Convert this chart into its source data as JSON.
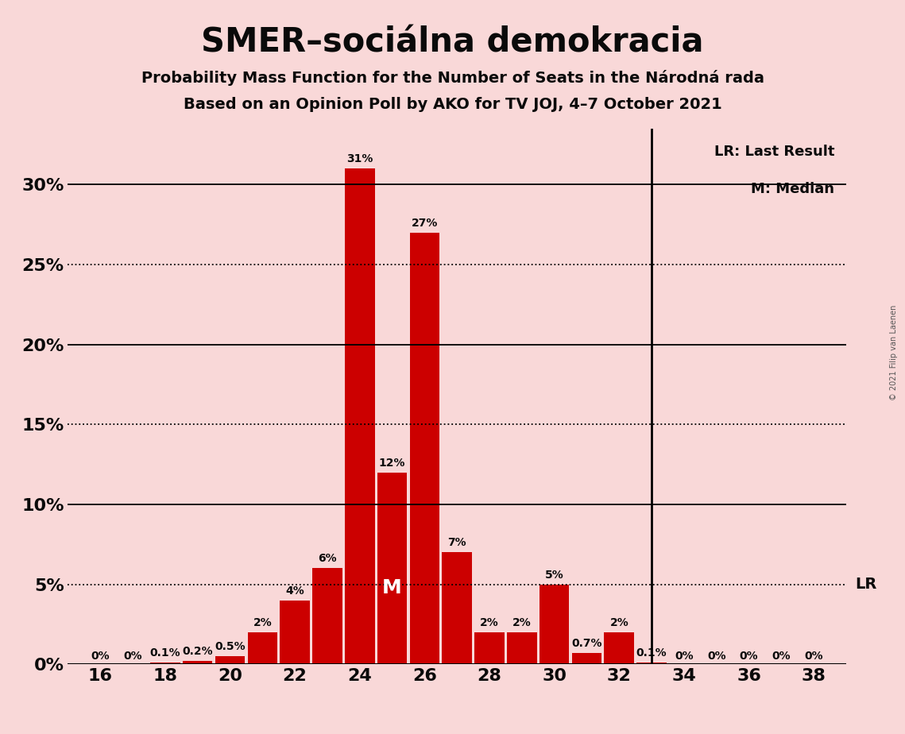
{
  "title": "SMER–sociálna demokracia",
  "subtitle1": "Probability Mass Function for the Number of Seats in the Národná rada",
  "subtitle2": "Based on an Opinion Poll by AKO for TV JOJ, 4–7 October 2021",
  "copyright": "© 2021 Filip van Laenen",
  "seats": [
    16,
    17,
    18,
    19,
    20,
    21,
    22,
    23,
    24,
    25,
    26,
    27,
    28,
    29,
    30,
    31,
    32,
    33,
    34,
    35,
    36,
    37,
    38
  ],
  "probabilities": [
    0.0,
    0.0,
    0.1,
    0.2,
    0.5,
    2.0,
    4.0,
    6.0,
    31.0,
    12.0,
    27.0,
    7.0,
    2.0,
    2.0,
    5.0,
    0.7,
    2.0,
    0.1,
    0.0,
    0.0,
    0.0,
    0.0,
    0.0
  ],
  "labels": [
    "0%",
    "0%",
    "0.1%",
    "0.2%",
    "0.5%",
    "2%",
    "4%",
    "6%",
    "31%",
    "12%",
    "27%",
    "7%",
    "2%",
    "2%",
    "5%",
    "0.7%",
    "2%",
    "0.1%",
    "0%",
    "0%",
    "0%",
    "0%",
    "0%"
  ],
  "bar_color": "#cc0000",
  "background_color": "#f9d8d8",
  "text_color": "#0a0a0a",
  "median_seat": 25,
  "lr_seat": 33,
  "yticks": [
    0,
    5,
    10,
    15,
    20,
    25,
    30
  ],
  "ylim_max": 33.5,
  "xlim": [
    15.0,
    39.0
  ],
  "xticks": [
    16,
    18,
    20,
    22,
    24,
    26,
    28,
    30,
    32,
    34,
    36,
    38
  ],
  "solid_hlines": [
    10,
    20,
    30
  ],
  "dotted_hlines": [
    5,
    15,
    25
  ],
  "title_fontsize": 30,
  "subtitle_fontsize": 14,
  "tick_fontsize": 16,
  "label_fontsize": 10
}
